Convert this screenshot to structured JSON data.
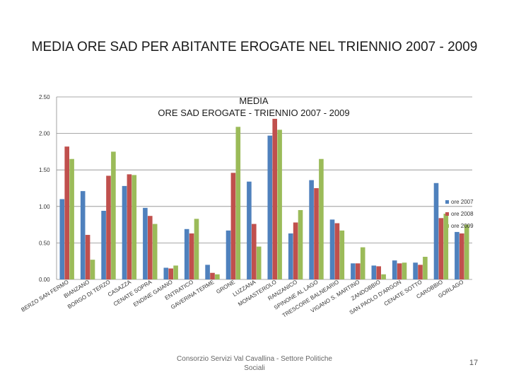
{
  "page": {
    "title": "MEDIA ORE SAD PER ABITANTE EROGATE NEL TRIENNIO 2007 - 2009",
    "footer": "Consorzio Servizi Val Cavallina - Settore Politiche Sociali",
    "page_number": "17"
  },
  "chart_data": {
    "type": "bar",
    "title": "MEDIA\nORE SAD EROGATE - TRIENNIO 2007 - 2009",
    "xlabel": "",
    "ylabel": "",
    "ylim": [
      0,
      2.5
    ],
    "yticks": [
      "0.00",
      "0.50",
      "1.00",
      "1.50",
      "2.00",
      "2.50"
    ],
    "grid": true,
    "legend": "right",
    "categories": [
      "BERZO SAN FERMO",
      "BIANZANO",
      "BORGO DI TERZO",
      "CASAZZA",
      "CENATE SOPRA",
      "ENDINE GAIANO",
      "ENTRATICO",
      "GAVERINA TERME",
      "GRONE",
      "LUZZANA",
      "MONASTEROLO",
      "RANZANICO",
      "SPINONE AL LAGO",
      "TRESCORE BALNEARIO",
      "VIGANO S. MARTINO",
      "ZANDOBBIO",
      "SAN PAOLO D'ARGON",
      "CENATE SOTTO",
      "CAROBBIO",
      "GORLAGO"
    ],
    "series": [
      {
        "name": "ore 2007",
        "color": "#4f81bd",
        "values": [
          1.1,
          1.21,
          0.94,
          1.28,
          0.98,
          0.16,
          0.69,
          0.2,
          0.67,
          1.34,
          1.97,
          0.63,
          1.36,
          0.82,
          0.22,
          0.19,
          0.26,
          0.23,
          1.32,
          0.65
        ]
      },
      {
        "name": "ore 2008",
        "color": "#c0504d",
        "values": [
          1.82,
          0.61,
          1.42,
          1.44,
          0.87,
          0.15,
          0.63,
          0.09,
          1.46,
          0.76,
          2.2,
          0.78,
          1.25,
          0.77,
          0.22,
          0.18,
          0.22,
          0.2,
          0.84,
          0.63
        ]
      },
      {
        "name": "ore 2009",
        "color": "#9bbb59",
        "values": [
          1.65,
          0.27,
          1.75,
          1.43,
          0.76,
          0.19,
          0.83,
          0.07,
          2.09,
          0.45,
          2.05,
          0.95,
          1.65,
          0.67,
          0.44,
          0.07,
          0.23,
          0.31,
          0.9,
          0.75
        ]
      }
    ]
  }
}
